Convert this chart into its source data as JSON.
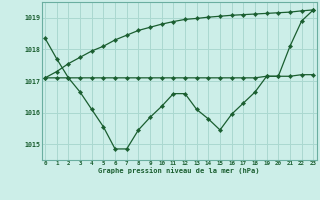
{
  "xlabel": "Graphe pression niveau de la mer (hPa)",
  "bg_color": "#cceee8",
  "grid_color": "#aad8d0",
  "line_color": "#1a5e30",
  "ylim": [
    1014.5,
    1019.5
  ],
  "yticks": [
    1015,
    1016,
    1017,
    1018,
    1019
  ],
  "xticks": [
    0,
    1,
    2,
    3,
    4,
    5,
    6,
    7,
    8,
    9,
    10,
    11,
    12,
    13,
    14,
    15,
    16,
    17,
    18,
    19,
    20,
    21,
    22,
    23
  ],
  "hours": [
    0,
    1,
    2,
    3,
    4,
    5,
    6,
    7,
    8,
    9,
    10,
    11,
    12,
    13,
    14,
    15,
    16,
    17,
    18,
    19,
    20,
    21,
    22,
    23
  ],
  "line1": [
    1018.35,
    1017.7,
    1017.1,
    1016.65,
    1016.1,
    1015.55,
    1014.85,
    1014.85,
    1015.45,
    1015.85,
    1016.2,
    1016.6,
    1016.6,
    1016.1,
    1015.8,
    1015.45,
    1015.95,
    1016.3,
    1016.65,
    1017.15,
    1017.15,
    1018.1,
    1018.9,
    1019.25
  ],
  "line2": [
    1017.1,
    1017.1,
    1017.1,
    1017.1,
    1017.1,
    1017.1,
    1017.1,
    1017.1,
    1017.1,
    1017.1,
    1017.1,
    1017.1,
    1017.1,
    1017.1,
    1017.1,
    1017.1,
    1017.1,
    1017.1,
    1017.1,
    1017.15,
    1017.15,
    1017.15,
    1017.2,
    1017.2
  ],
  "line3": [
    1017.1,
    1017.3,
    1017.55,
    1017.75,
    1017.95,
    1018.1,
    1018.3,
    1018.45,
    1018.6,
    1018.7,
    1018.8,
    1018.88,
    1018.95,
    1018.98,
    1019.02,
    1019.05,
    1019.08,
    1019.1,
    1019.12,
    1019.14,
    1019.16,
    1019.18,
    1019.22,
    1019.25
  ]
}
